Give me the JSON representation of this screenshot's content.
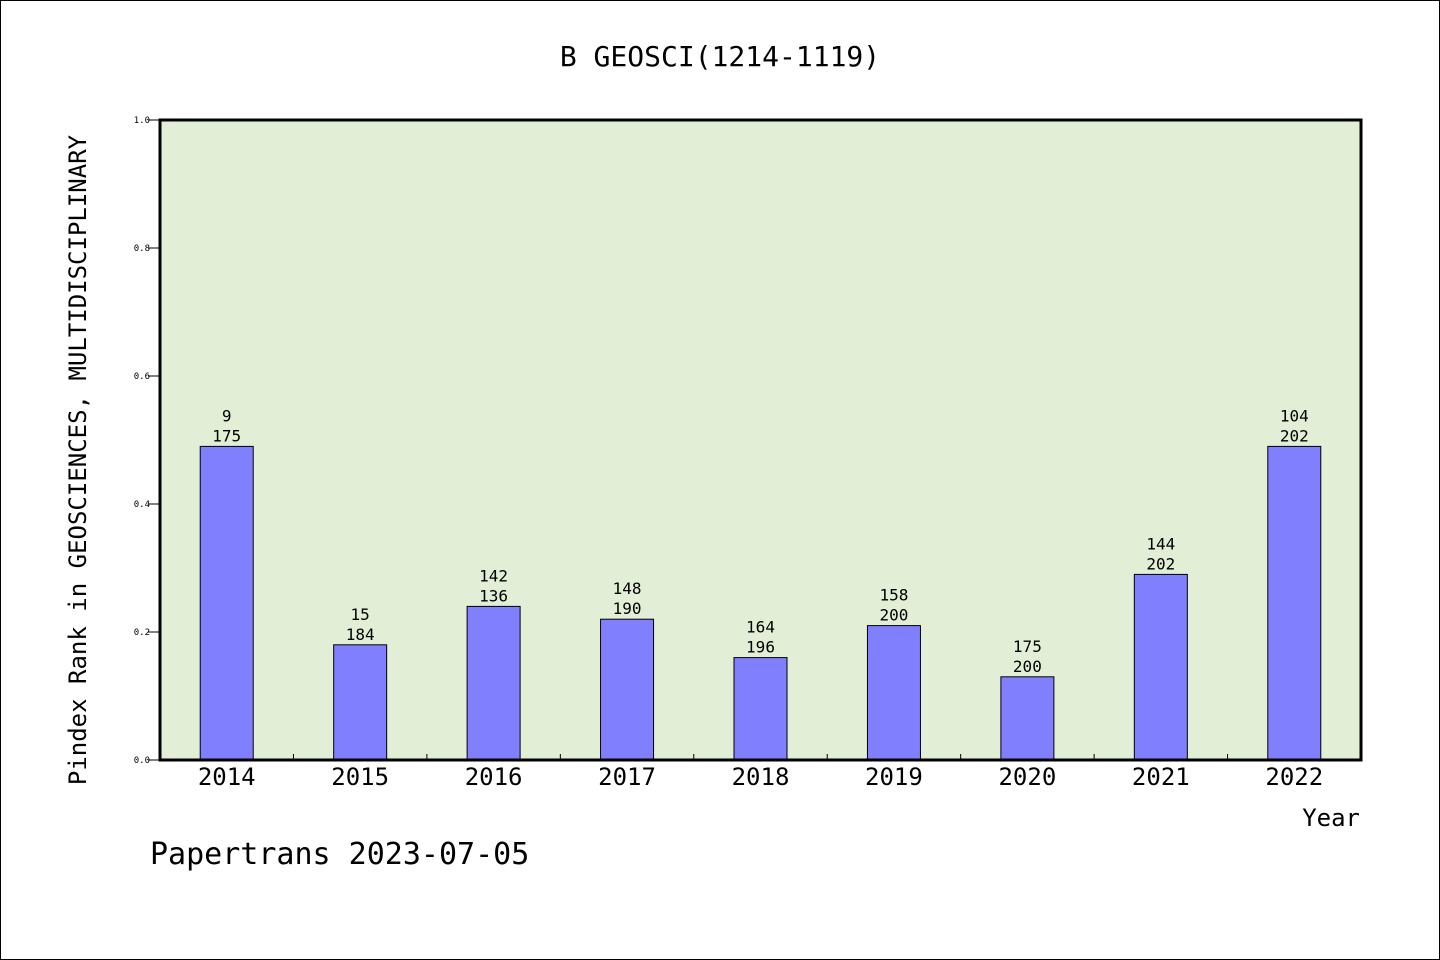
{
  "chart_data": {
    "type": "bar",
    "title": "B GEOSCI(1214-1119)",
    "xlabel": "Year",
    "ylabel": "Pindex Rank in GEOSCIENCES, MULTIDISCIPLINARY",
    "categories": [
      "2014",
      "2015",
      "2016",
      "2017",
      "2018",
      "2019",
      "2020",
      "2021",
      "2022"
    ],
    "values": [
      0.49,
      0.18,
      0.24,
      0.22,
      0.16,
      0.21,
      0.13,
      0.29,
      0.49
    ],
    "labels_top": [
      "9",
      "15",
      "142",
      "148",
      "164",
      "158",
      "175",
      "144",
      "104"
    ],
    "labels_bottom": [
      "175",
      "184",
      "136",
      "190",
      "196",
      "200",
      "200",
      "202",
      "202"
    ],
    "ylim": [
      0,
      1.0
    ],
    "yticks": [
      "0.0",
      "0.2",
      "0.4",
      "0.6",
      "0.8",
      "1.0"
    ],
    "grid": false,
    "colors": {
      "bar": "#8080ff",
      "plot_bg": "#e2efd6"
    }
  },
  "footer": "Papertrans 2023-07-05"
}
